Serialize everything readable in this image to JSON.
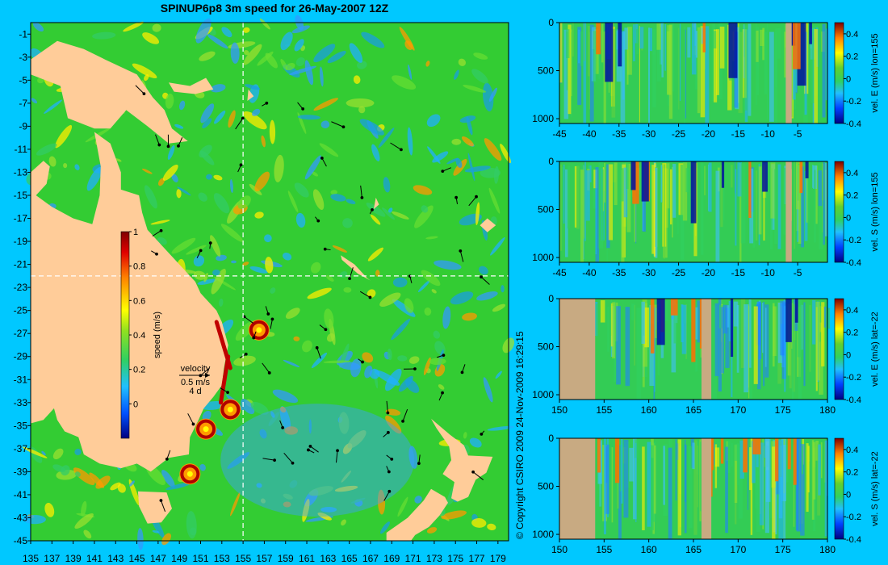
{
  "title": "SPINUP6p8 3m speed for 26-May-2007 12Z",
  "copyright": "© Copyright CSIRO 2009    24-Nov-2009 16:29:15",
  "colors": {
    "background": "#00c8ff",
    "land": "#ffcc99",
    "section_land": "#c8aa82",
    "water_base": "#33cc33",
    "crosshair": "#ffffff"
  },
  "chart_data": [
    {
      "type": "heatmap",
      "name": "map",
      "title": "SPINUP6p8 3m speed for 26-May-2007 12Z",
      "xlim": [
        135,
        180
      ],
      "ylim": [
        -45,
        0
      ],
      "x_ticks": [
        "135",
        "137",
        "139",
        "141",
        "143",
        "145",
        "147",
        "149",
        "151",
        "153",
        "155",
        "157",
        "159",
        "161",
        "163",
        "165",
        "167",
        "169",
        "171",
        "173",
        "175",
        "177",
        "179"
      ],
      "y_ticks": [
        "-1",
        "-3",
        "-5",
        "-7",
        "-9",
        "-11",
        "-13",
        "-15",
        "-17",
        "-19",
        "-21",
        "-23",
        "-25",
        "-27",
        "-29",
        "-31",
        "-33",
        "-35",
        "-37",
        "-39",
        "-41",
        "-43",
        "-45"
      ],
      "crosshair": {
        "lon": 155,
        "lat": -22
      },
      "colorbar": {
        "label": "speed (m/s)",
        "range": [
          -0.2,
          1.0
        ],
        "ticks": [
          "1",
          "0.8",
          "0.6",
          "0.4",
          "0.2",
          "0"
        ]
      },
      "velocity_key": {
        "label": "velocity",
        "speed": "0.5 m/s",
        "duration": "4 d"
      },
      "eddies": [
        {
          "lon": 150.0,
          "lat": -39.2,
          "speed": 1.0
        },
        {
          "lon": 151.5,
          "lat": -35.3,
          "speed": 1.0
        },
        {
          "lon": 153.8,
          "lat": -33.6,
          "speed": 1.0
        },
        {
          "lon": 156.5,
          "lat": -26.7,
          "speed": 0.9
        }
      ]
    },
    {
      "type": "heatmap",
      "name": "section1",
      "ylabel": "vel. E (m/s) lon=155",
      "x_axis": "latitude",
      "xlim": [
        -45,
        0
      ],
      "ylim": [
        1050,
        0
      ],
      "x_ticks": [
        "-45",
        "-40",
        "-35",
        "-30",
        "-25",
        "-20",
        "-15",
        "-10",
        "-5"
      ],
      "y_ticks": [
        "0",
        "500",
        "1000"
      ],
      "colorbar": {
        "range": [
          -0.4,
          0.5
        ],
        "ticks": [
          "0.4",
          "0.2",
          "0",
          "-0.2",
          "-0.4"
        ]
      },
      "land_ranges": [
        [
          -7.0,
          -6.0
        ]
      ]
    },
    {
      "type": "heatmap",
      "name": "section2",
      "ylabel": "vel. S (m/s) lon=155",
      "x_axis": "latitude",
      "xlim": [
        -45,
        0
      ],
      "ylim": [
        1050,
        0
      ],
      "x_ticks": [
        "-45",
        "-40",
        "-35",
        "-30",
        "-25",
        "-20",
        "-15",
        "-10",
        "-5"
      ],
      "y_ticks": [
        "0",
        "500",
        "1000"
      ],
      "colorbar": {
        "range": [
          -0.4,
          0.5
        ],
        "ticks": [
          "0.4",
          "0.2",
          "0",
          "-0.2",
          "-0.4"
        ]
      },
      "land_ranges": [
        [
          -7.0,
          -6.0
        ]
      ]
    },
    {
      "type": "heatmap",
      "name": "section3",
      "ylabel": "vel. E (m/s) lat=-22",
      "x_axis": "longitude",
      "xlim": [
        150,
        180
      ],
      "ylim": [
        1050,
        0
      ],
      "x_ticks": [
        "150",
        "155",
        "160",
        "165",
        "170",
        "175",
        "180"
      ],
      "y_ticks": [
        "0",
        "500",
        "1000"
      ],
      "colorbar": {
        "range": [
          -0.4,
          0.5
        ],
        "ticks": [
          "0.4",
          "0.2",
          "0",
          "-0.2",
          "-0.4"
        ]
      },
      "land_ranges": [
        [
          150.0,
          154.0
        ],
        [
          165.9,
          167.0
        ]
      ]
    },
    {
      "type": "heatmap",
      "name": "section4",
      "ylabel": "vel. S (m/s) lat=-22",
      "x_axis": "longitude",
      "xlim": [
        150,
        180
      ],
      "ylim": [
        1050,
        0
      ],
      "x_ticks": [
        "150",
        "155",
        "160",
        "165",
        "170",
        "175",
        "180"
      ],
      "y_ticks": [
        "0",
        "500",
        "1000"
      ],
      "colorbar": {
        "range": [
          -0.4,
          0.5
        ],
        "ticks": [
          "0.4",
          "0.2",
          "0",
          "-0.2",
          "-0.4"
        ]
      },
      "land_ranges": [
        [
          150.0,
          154.0
        ],
        [
          165.9,
          167.0
        ]
      ]
    }
  ]
}
